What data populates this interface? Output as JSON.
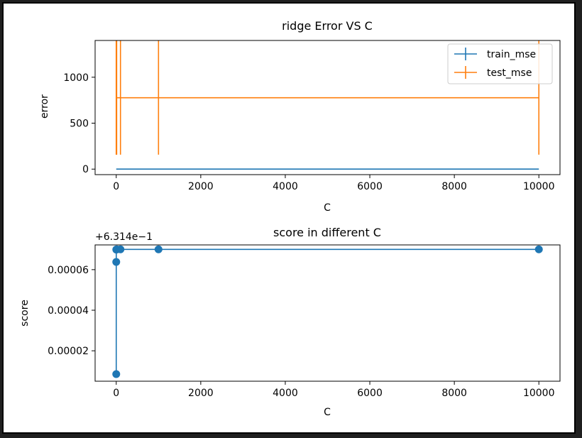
{
  "chart_data": [
    {
      "type": "line",
      "title": "ridge Error VS C",
      "xlabel": "C",
      "ylabel": "error",
      "x": [
        0.01,
        0.1,
        1,
        10,
        100,
        1000,
        10000
      ],
      "xlim": [
        -500,
        10500
      ],
      "ylim": [
        -60,
        1400
      ],
      "xticks": [
        0,
        2000,
        4000,
        6000,
        8000,
        10000
      ],
      "xtick_labels": [
        "0",
        "2000",
        "4000",
        "6000",
        "8000",
        "10000"
      ],
      "yticks": [
        0,
        500,
        1000
      ],
      "ytick_labels": [
        "0",
        "500",
        "1000"
      ],
      "legend_position": "top-right",
      "series": [
        {
          "name": "train_mse",
          "color": "#1f77b4",
          "values": [
            0,
            0,
            0,
            0,
            0,
            0,
            0
          ],
          "yerr": [
            0,
            0,
            0,
            0,
            0,
            0,
            0
          ]
        },
        {
          "name": "test_mse",
          "color": "#ff7f0e",
          "values": [
            777,
            777,
            777,
            777,
            777,
            777,
            777
          ],
          "yerr": [
            620,
            620,
            620,
            620,
            620,
            620,
            620
          ]
        }
      ]
    },
    {
      "type": "line",
      "title": "score in different C",
      "xlabel": "C",
      "ylabel": "score",
      "offset_label": "+6.314e−1",
      "x": [
        0.01,
        0.1,
        1,
        10,
        100,
        1000,
        10000
      ],
      "xlim": [
        -500,
        10500
      ],
      "ylim": [
        5e-06,
        7.22e-05
      ],
      "xticks": [
        0,
        2000,
        4000,
        6000,
        8000,
        10000
      ],
      "xtick_labels": [
        "0",
        "2000",
        "4000",
        "6000",
        "8000",
        "10000"
      ],
      "yticks": [
        2e-05,
        4e-05,
        6e-05
      ],
      "ytick_labels": [
        "0.00002",
        "0.00004",
        "0.00006"
      ],
      "series": [
        {
          "color": "#1f77b4",
          "marker": "circle",
          "values": [
            8.5e-06,
            6.38e-05,
            6.99e-05,
            7e-05,
            7e-05,
            7e-05,
            7e-05
          ]
        }
      ]
    }
  ]
}
